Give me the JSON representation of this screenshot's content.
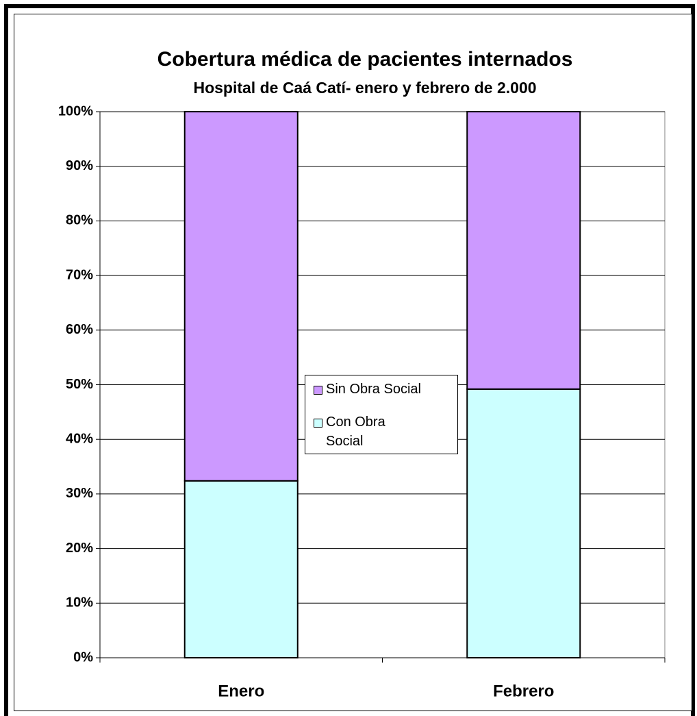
{
  "chart_data": {
    "type": "stacked_bar",
    "title": "Cobertura médica de pacientes internados",
    "subtitle": "Hospital de Caá Catí- enero y febrero de 2.000",
    "categories": [
      "Enero",
      "Febrero"
    ],
    "series": [
      {
        "name": "Con Obra Social",
        "color": "#ccffff",
        "values": [
          32.4,
          49.2
        ]
      },
      {
        "name": "Sin Obra Social",
        "color": "#cc99ff",
        "values": [
          67.6,
          50.8
        ]
      }
    ],
    "ylim": [
      0,
      100
    ],
    "yticks": [
      {
        "value": 0,
        "label": "0%"
      },
      {
        "value": 10,
        "label": "10%"
      },
      {
        "value": 20,
        "label": "20%"
      },
      {
        "value": 30,
        "label": "30%"
      },
      {
        "value": 40,
        "label": "40%"
      },
      {
        "value": 50,
        "label": "50%"
      },
      {
        "value": 60,
        "label": "60%"
      },
      {
        "value": 70,
        "label": "70%"
      },
      {
        "value": 80,
        "label": "80%"
      },
      {
        "value": 90,
        "label": "90%"
      },
      {
        "value": 100,
        "label": "100%"
      }
    ],
    "grid": true
  }
}
